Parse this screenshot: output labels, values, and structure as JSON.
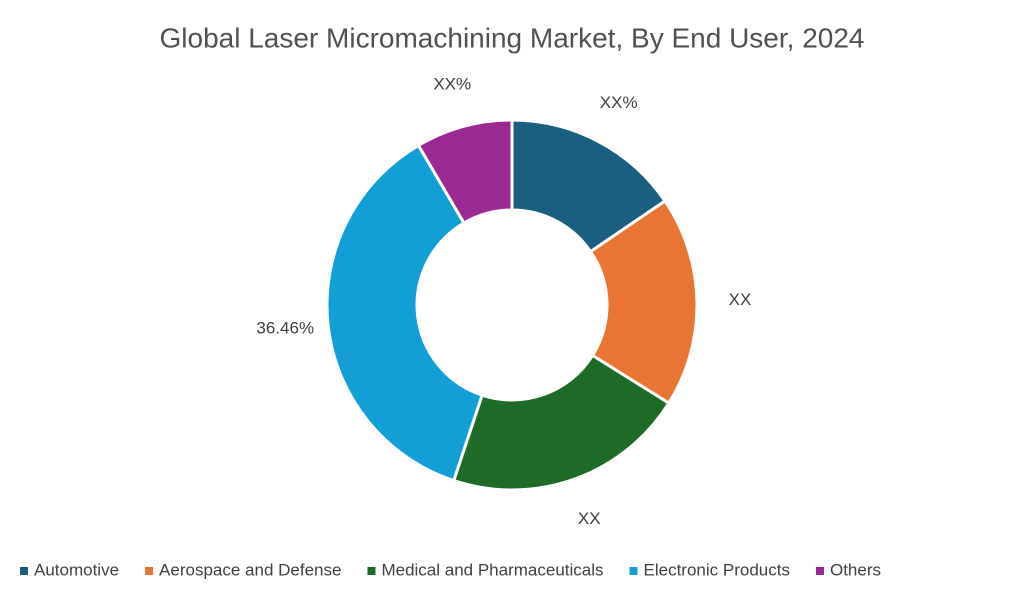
{
  "chart_data": {
    "type": "donut",
    "title": "Global Laser Micromachining Market, By End User, 2024",
    "categories": [
      "Automotive",
      "Aerospace and Defense",
      "Medical and Pharmaceuticals",
      "Electronic Products",
      "Others"
    ],
    "values": [
      15.5,
      18.4,
      21.2,
      36.46,
      8.44
    ],
    "value_labels": [
      "XX%",
      "XX",
      "XX",
      "36.46%",
      "XX%"
    ],
    "colors": [
      "#1a5e80",
      "#e87533",
      "#1e6b28",
      "#139fd6",
      "#9a2a92"
    ],
    "legend": "bottom"
  }
}
